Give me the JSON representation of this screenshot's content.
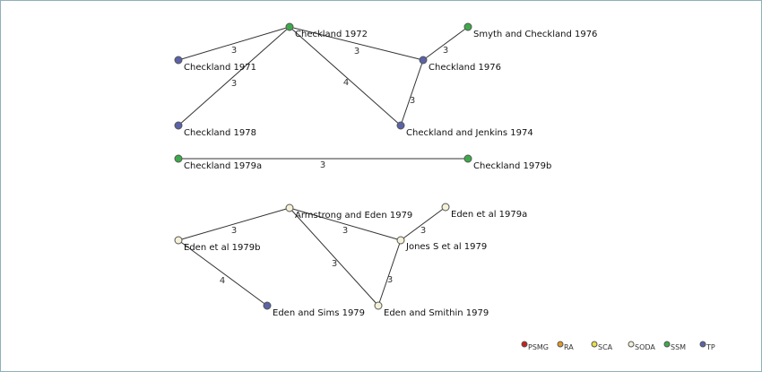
{
  "colors": {
    "PSMG": "#cc1f1f",
    "RA": "#e09a2a",
    "SCA": "#e8e04a",
    "SODA": "#f4f1d8",
    "SSM": "#3daa4a",
    "TP": "#5a63a8"
  },
  "nodes": [
    {
      "id": "c1972",
      "label": "Checkland 1972",
      "group": "SSM"
    },
    {
      "id": "c1971",
      "label": "Checkland 1971",
      "group": "TP"
    },
    {
      "id": "c1978",
      "label": "Checkland 1978",
      "group": "TP"
    },
    {
      "id": "sc1976",
      "label": "Smyth and Checkland 1976",
      "group": "SSM"
    },
    {
      "id": "c1976",
      "label": "Checkland 1976",
      "group": "TP"
    },
    {
      "id": "cj1974",
      "label": "Checkland and Jenkins 1974",
      "group": "TP"
    },
    {
      "id": "c1979a",
      "label": "Checkland 1979a",
      "group": "SSM"
    },
    {
      "id": "c1979b",
      "label": "Checkland 1979b",
      "group": "SSM"
    },
    {
      "id": "ae1979",
      "label": "Armstrong and Eden 1979",
      "group": "SODA"
    },
    {
      "id": "e1979a",
      "label": "Eden et al 1979a",
      "group": "SODA"
    },
    {
      "id": "e1979b",
      "label": "Eden et al 1979b",
      "group": "SODA"
    },
    {
      "id": "js1979",
      "label": "Jones S et al 1979",
      "group": "SODA"
    },
    {
      "id": "es1979",
      "label": "Eden and Sims 1979",
      "group": "TP"
    },
    {
      "id": "esm1979",
      "label": "Eden and Smithin 1979",
      "group": "SODA"
    }
  ],
  "edges": [
    {
      "from": "c1971",
      "to": "c1972",
      "weight": "3"
    },
    {
      "from": "c1978",
      "to": "c1972",
      "weight": "3"
    },
    {
      "from": "c1972",
      "to": "c1976",
      "weight": "3"
    },
    {
      "from": "c1972",
      "to": "cj1974",
      "weight": "4"
    },
    {
      "from": "c1976",
      "to": "sc1976",
      "weight": "3"
    },
    {
      "from": "c1976",
      "to": "cj1974",
      "weight": "3"
    },
    {
      "from": "c1979a",
      "to": "c1979b",
      "weight": "3"
    },
    {
      "from": "e1979b",
      "to": "ae1979",
      "weight": "3"
    },
    {
      "from": "ae1979",
      "to": "js1979",
      "weight": "3"
    },
    {
      "from": "ae1979",
      "to": "esm1979",
      "weight": "3"
    },
    {
      "from": "js1979",
      "to": "e1979a",
      "weight": "3"
    },
    {
      "from": "js1979",
      "to": "esm1979",
      "weight": "3"
    },
    {
      "from": "e1979b",
      "to": "es1979",
      "weight": "4"
    }
  ],
  "legend": [
    {
      "label": "PSMG",
      "group": "PSMG"
    },
    {
      "label": "RA",
      "group": "RA"
    },
    {
      "label": "SCA",
      "group": "SCA"
    },
    {
      "label": "SODA",
      "group": "SODA"
    },
    {
      "label": "SSM",
      "group": "SSM"
    },
    {
      "label": "TP",
      "group": "TP"
    }
  ]
}
